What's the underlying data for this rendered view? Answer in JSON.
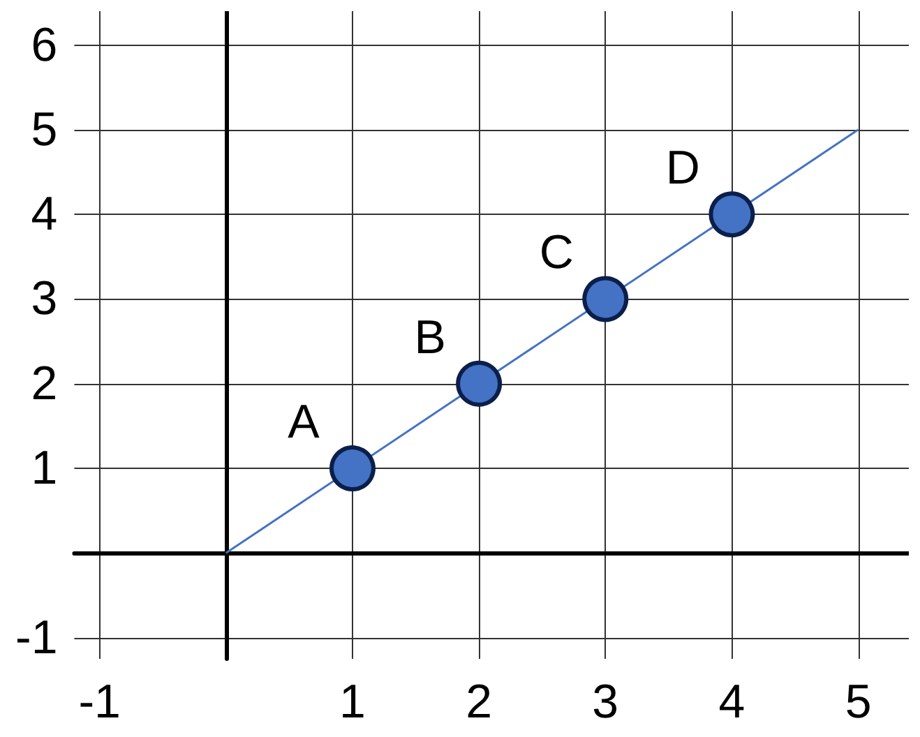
{
  "chart_data": {
    "type": "scatter",
    "xlim": [
      -1.2,
      5.4
    ],
    "ylim": [
      -1.25,
      6.4
    ],
    "xticks": [
      -1,
      1,
      2,
      3,
      4,
      5
    ],
    "yticks": [
      -1,
      1,
      2,
      3,
      4,
      5,
      6
    ],
    "grid": true,
    "marker": "circle",
    "series": [
      {
        "type": "line",
        "color": "#4472c4",
        "x": [
          0,
          5
        ],
        "values": [
          0,
          5
        ],
        "marker": "none"
      },
      {
        "color": "#4472c4",
        "x": [
          1,
          2,
          3,
          4
        ],
        "values": [
          1,
          2,
          3,
          4
        ]
      }
    ],
    "annotations": [
      {
        "text": "A",
        "x": 1,
        "y": 1
      },
      {
        "text": "B",
        "x": 2,
        "y": 2
      },
      {
        "text": "C",
        "x": 3,
        "y": 3
      },
      {
        "text": "D",
        "x": 4,
        "y": 4
      }
    ]
  }
}
